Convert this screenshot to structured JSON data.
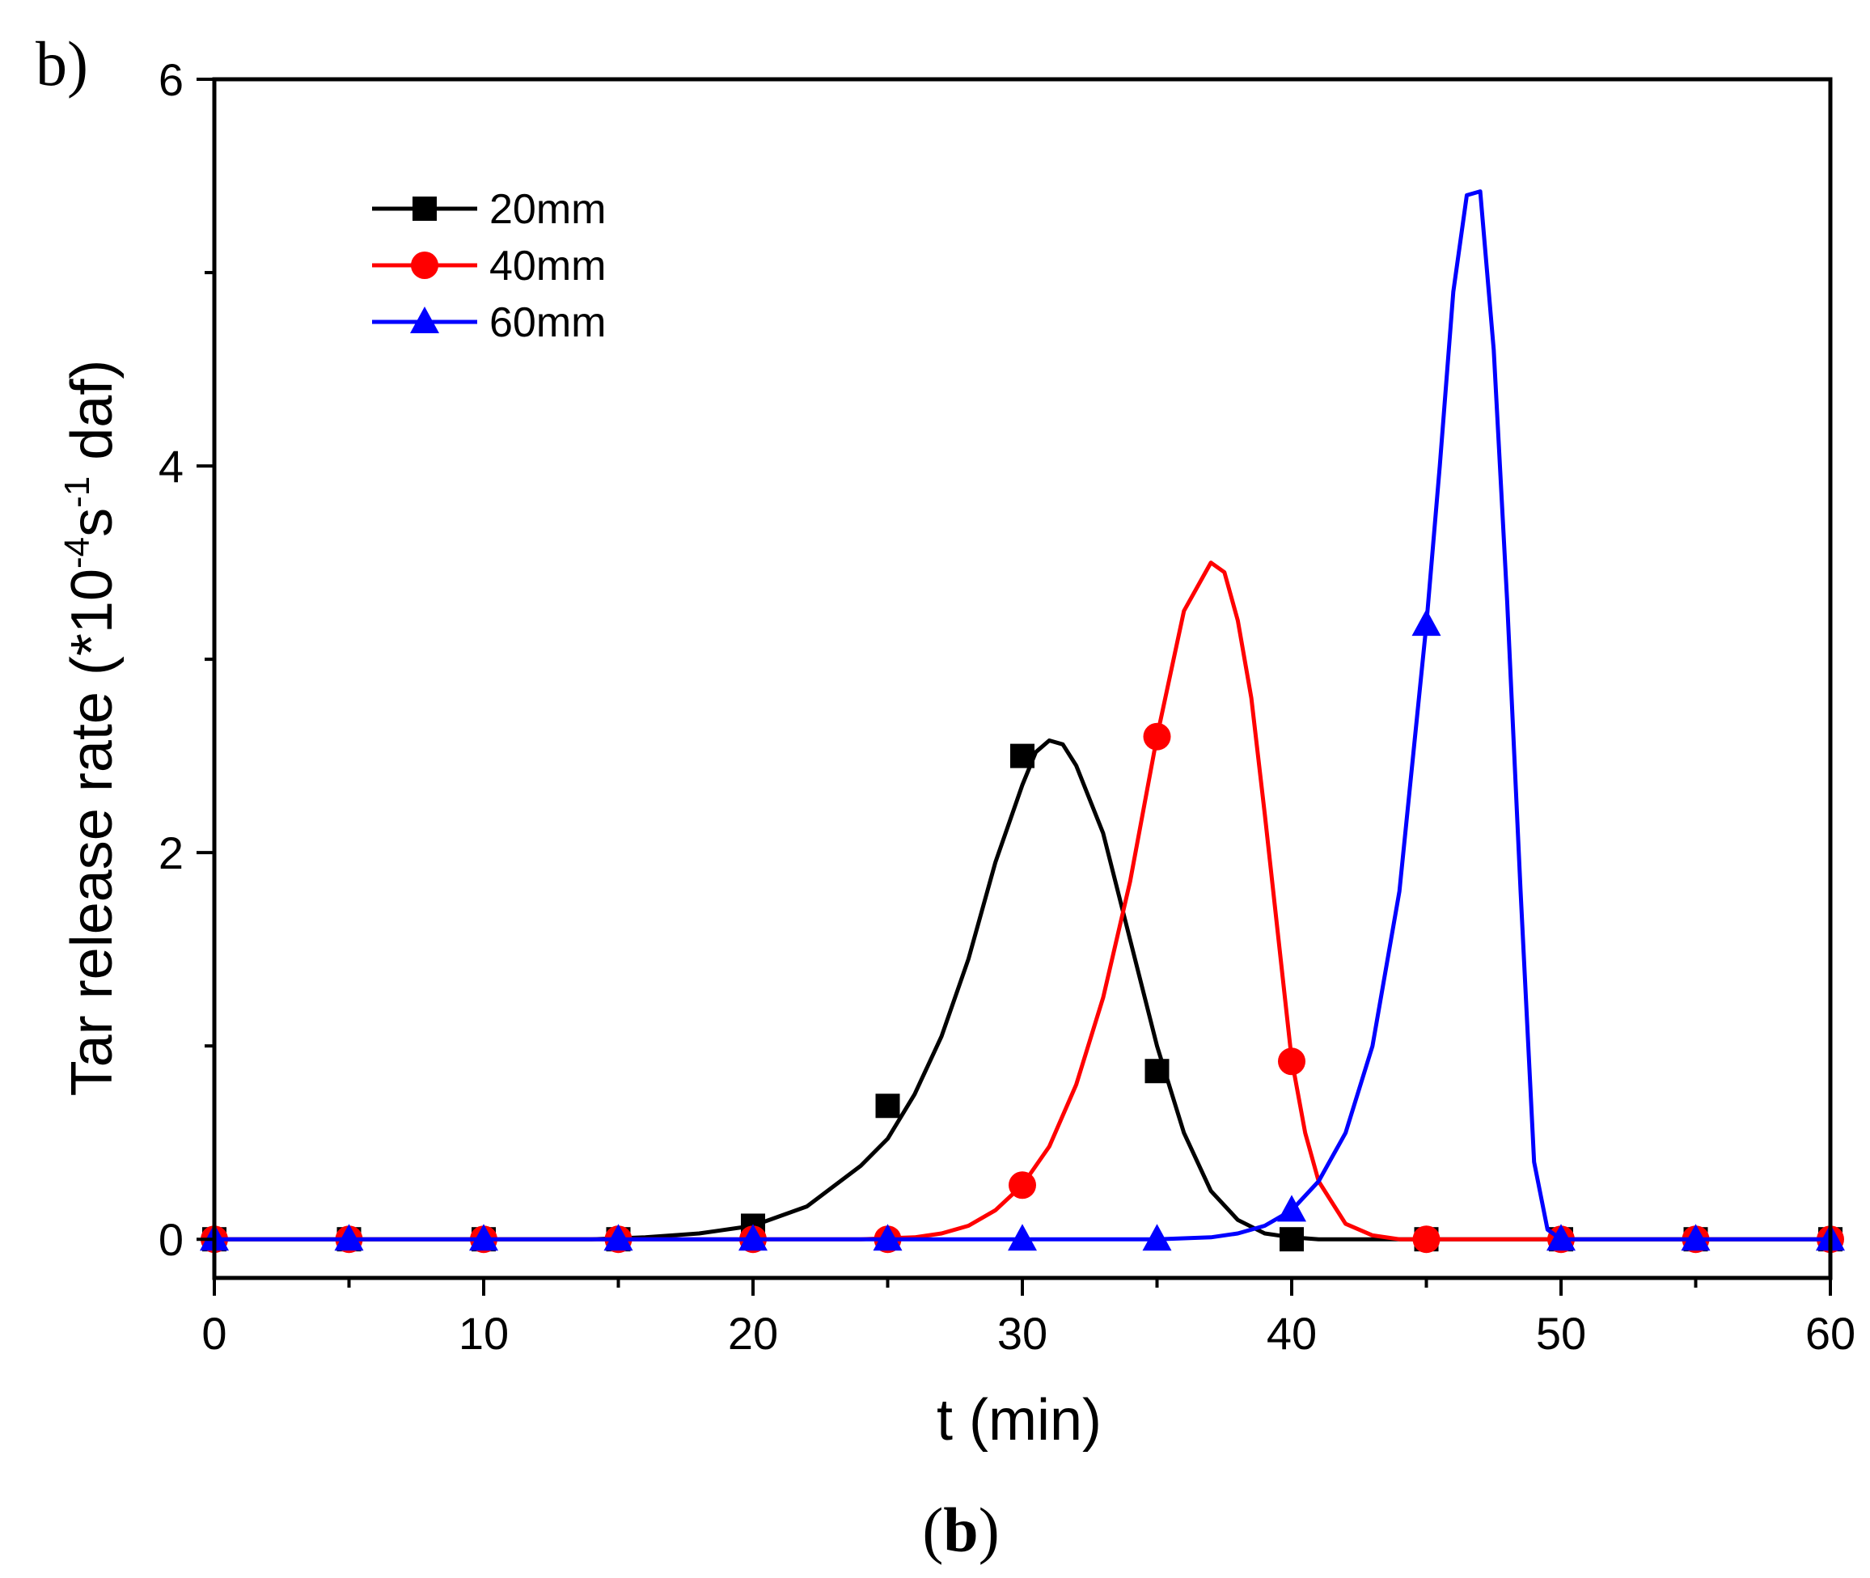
{
  "panel_label": "b)",
  "caption": {
    "open": "(",
    "letter": "b",
    "close": ")"
  },
  "chart_data": {
    "type": "line",
    "title": "",
    "xlabel": "t (min)",
    "ylabel": {
      "main": "Tar release rate (*10",
      "sup1": "-4",
      "mid": "s",
      "sup2": "-1",
      "tail": " daf)"
    },
    "xlim": [
      0,
      60
    ],
    "ylim": [
      -0.2,
      6
    ],
    "x_ticks": [
      0,
      10,
      20,
      30,
      40,
      50,
      60
    ],
    "y_ticks": [
      0,
      2,
      4,
      6
    ],
    "grid": false,
    "legend_position": "top-left",
    "series": [
      {
        "name": "20mm",
        "color": "#000000",
        "marker": "square",
        "curve": [
          [
            0,
            0
          ],
          [
            14,
            0
          ],
          [
            16,
            0.01
          ],
          [
            18,
            0.03
          ],
          [
            20,
            0.07
          ],
          [
            22,
            0.17
          ],
          [
            24,
            0.38
          ],
          [
            25,
            0.52
          ],
          [
            26,
            0.75
          ],
          [
            27,
            1.05
          ],
          [
            28,
            1.45
          ],
          [
            29,
            1.95
          ],
          [
            30,
            2.35
          ],
          [
            30.5,
            2.52
          ],
          [
            31,
            2.58
          ],
          [
            31.5,
            2.56
          ],
          [
            32,
            2.45
          ],
          [
            33,
            2.1
          ],
          [
            34,
            1.55
          ],
          [
            35,
            1.0
          ],
          [
            36,
            0.55
          ],
          [
            37,
            0.25
          ],
          [
            38,
            0.1
          ],
          [
            39,
            0.03
          ],
          [
            40,
            0.01
          ],
          [
            41,
            0
          ],
          [
            60,
            0
          ]
        ],
        "markers": [
          [
            0,
            0
          ],
          [
            5,
            0
          ],
          [
            10,
            0
          ],
          [
            15,
            0
          ],
          [
            20,
            0.07
          ],
          [
            25,
            0.69
          ],
          [
            30,
            2.5
          ],
          [
            35,
            0.87
          ],
          [
            40,
            0
          ],
          [
            45,
            0
          ],
          [
            50,
            0
          ],
          [
            55,
            0
          ],
          [
            60,
            0
          ]
        ]
      },
      {
        "name": "40mm",
        "color": "#ff0000",
        "marker": "circle",
        "curve": [
          [
            0,
            0
          ],
          [
            24,
            0
          ],
          [
            26,
            0.01
          ],
          [
            27,
            0.03
          ],
          [
            28,
            0.07
          ],
          [
            29,
            0.15
          ],
          [
            30,
            0.28
          ],
          [
            31,
            0.48
          ],
          [
            32,
            0.8
          ],
          [
            33,
            1.25
          ],
          [
            34,
            1.85
          ],
          [
            35,
            2.6
          ],
          [
            36,
            3.25
          ],
          [
            37,
            3.5
          ],
          [
            37.5,
            3.45
          ],
          [
            38,
            3.2
          ],
          [
            38.5,
            2.8
          ],
          [
            39,
            2.2
          ],
          [
            40,
            0.93
          ],
          [
            40.5,
            0.55
          ],
          [
            41,
            0.3
          ],
          [
            42,
            0.08
          ],
          [
            43,
            0.02
          ],
          [
            44,
            0
          ],
          [
            60,
            0
          ]
        ],
        "markers": [
          [
            0,
            0
          ],
          [
            5,
            0
          ],
          [
            10,
            0
          ],
          [
            15,
            0
          ],
          [
            20,
            0
          ],
          [
            25,
            0
          ],
          [
            30,
            0.28
          ],
          [
            35,
            2.6
          ],
          [
            40,
            0.92
          ],
          [
            45,
            0
          ],
          [
            50,
            0
          ],
          [
            55,
            0
          ],
          [
            60,
            0
          ]
        ]
      },
      {
        "name": "60mm",
        "color": "#0000ff",
        "marker": "triangle",
        "curve": [
          [
            0,
            0
          ],
          [
            35,
            0
          ],
          [
            36,
            0.005
          ],
          [
            37,
            0.01
          ],
          [
            38,
            0.03
          ],
          [
            39,
            0.07
          ],
          [
            40,
            0.15
          ],
          [
            41,
            0.3
          ],
          [
            42,
            0.55
          ],
          [
            43,
            1.0
          ],
          [
            44,
            1.8
          ],
          [
            45,
            3.18
          ],
          [
            45.5,
            4.0
          ],
          [
            46,
            4.9
          ],
          [
            46.5,
            5.4
          ],
          [
            47,
            5.42
          ],
          [
            47.5,
            4.6
          ],
          [
            48,
            3.3
          ],
          [
            48.5,
            1.8
          ],
          [
            49,
            0.4
          ],
          [
            49.5,
            0.05
          ],
          [
            50,
            0
          ],
          [
            60,
            0
          ]
        ],
        "markers": [
          [
            0,
            0
          ],
          [
            5,
            0
          ],
          [
            10,
            0
          ],
          [
            15,
            0
          ],
          [
            20,
            0
          ],
          [
            25,
            0
          ],
          [
            30,
            0
          ],
          [
            35,
            0
          ],
          [
            40,
            0.15
          ],
          [
            45,
            3.18
          ],
          [
            50,
            0
          ],
          [
            55,
            0
          ],
          [
            60,
            0
          ]
        ]
      }
    ]
  }
}
